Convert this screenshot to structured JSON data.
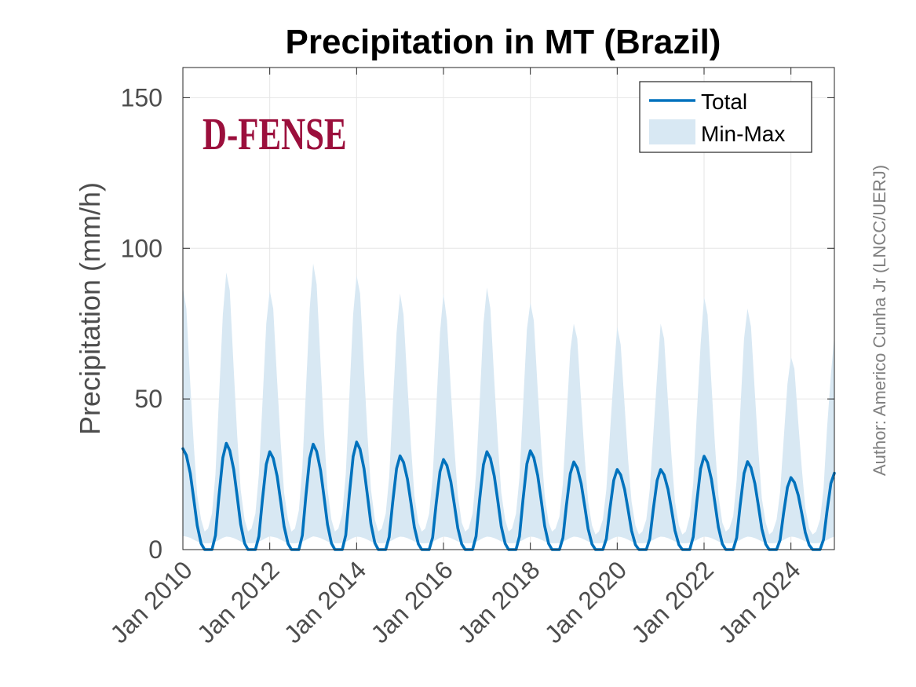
{
  "chart_data": {
    "type": "area",
    "title": "Precipitation in MT (Brazil)",
    "xlabel": "",
    "ylabel": "Precipitation (mm/h)",
    "author": "Author: Americo Cunha Jr (LNCC/UERJ)",
    "logo_text": "D-FENSE",
    "xlim": [
      2010.0,
      2025.0
    ],
    "ylim": [
      0,
      160
    ],
    "yticks": [
      0,
      50,
      100,
      150
    ],
    "xtick_labels": [
      "Jan 2010",
      "Jan 2012",
      "Jan 2014",
      "Jan 2016",
      "Jan 2018",
      "Jan 2020",
      "Jan 2022",
      "Jan 2024"
    ],
    "xtick_years": [
      2010,
      2012,
      2014,
      2016,
      2018,
      2020,
      2022,
      2024
    ],
    "grid": true,
    "legend_position": "top-right",
    "colors": {
      "line": "#0072BD",
      "band": "#D8E8F3",
      "logo": "#9B0F3C"
    },
    "series": [
      {
        "name": "Total",
        "x": [
          2010.0,
          2010.08,
          2010.17,
          2010.25,
          2010.33,
          2010.42,
          2010.5,
          2010.58,
          2010.67,
          2010.75,
          2010.83,
          2010.92,
          2011.0,
          2011.08,
          2011.17,
          2011.25,
          2011.33,
          2011.42,
          2011.5,
          2011.58,
          2011.67,
          2011.75,
          2011.83,
          2011.92,
          2012.0,
          2012.08,
          2012.17,
          2012.25,
          2012.33,
          2012.42,
          2012.5,
          2012.58,
          2012.67,
          2012.75,
          2012.83,
          2012.92,
          2013.0,
          2013.08,
          2013.17,
          2013.25,
          2013.33,
          2013.42,
          2013.5,
          2013.58,
          2013.67,
          2013.75,
          2013.83,
          2013.92,
          2014.0,
          2014.08,
          2014.17,
          2014.25,
          2014.33,
          2014.42,
          2014.5,
          2014.58,
          2014.67,
          2014.75,
          2014.83,
          2014.92,
          2015.0,
          2015.08,
          2015.17,
          2015.25,
          2015.33,
          2015.42,
          2015.5,
          2015.58,
          2015.67,
          2015.75,
          2015.83,
          2015.92,
          2016.0,
          2016.08,
          2016.17,
          2016.25,
          2016.33,
          2016.42,
          2016.5,
          2016.58,
          2016.67,
          2016.75,
          2016.83,
          2016.92,
          2017.0,
          2017.08,
          2017.17,
          2017.25,
          2017.33,
          2017.42,
          2017.5,
          2017.58,
          2017.67,
          2017.75,
          2017.83,
          2017.92,
          2018.0,
          2018.08,
          2018.17,
          2018.25,
          2018.33,
          2018.42,
          2018.5,
          2018.58,
          2018.67,
          2018.75,
          2018.83,
          2018.92,
          2019.0,
          2019.08,
          2019.17,
          2019.25,
          2019.33,
          2019.42,
          2019.5,
          2019.58,
          2019.67,
          2019.75,
          2019.83,
          2019.92,
          2020.0,
          2020.08,
          2020.17,
          2020.25,
          2020.33,
          2020.42,
          2020.5,
          2020.58,
          2020.67,
          2020.75,
          2020.83,
          2020.92,
          2021.0,
          2021.08,
          2021.17,
          2021.25,
          2021.33,
          2021.42,
          2021.5,
          2021.58,
          2021.67,
          2021.75,
          2021.83,
          2021.92,
          2022.0,
          2022.08,
          2022.17,
          2022.25,
          2022.33,
          2022.42,
          2022.5,
          2022.58,
          2022.67,
          2022.75,
          2022.83,
          2022.92,
          2023.0,
          2023.08,
          2023.17,
          2023.25,
          2023.33,
          2023.42,
          2023.5,
          2023.58,
          2023.67,
          2023.75,
          2023.83,
          2023.92,
          2024.0,
          2024.08,
          2024.17,
          2024.25,
          2024.33,
          2024.42,
          2024.5,
          2024.58,
          2024.67,
          2024.75,
          2024.83,
          2024.92,
          2025.0
        ],
        "values": [
          33.5,
          31.3,
          25.3,
          16.8,
          8.0,
          2.0,
          0.0,
          0.0,
          0.0,
          4.7,
          17.7,
          30.5,
          35.3,
          32.9,
          26.6,
          17.7,
          8.4,
          2.1,
          0.0,
          0.0,
          0.0,
          4.4,
          16.4,
          28.3,
          32.5,
          30.3,
          24.4,
          16.2,
          7.7,
          2.0,
          0.0,
          0.0,
          0.0,
          4.7,
          17.5,
          30.3,
          35.0,
          32.6,
          26.3,
          17.5,
          8.3,
          2.1,
          0.0,
          0.0,
          0.0,
          4.8,
          17.9,
          30.9,
          35.7,
          33.3,
          26.9,
          17.9,
          8.5,
          2.2,
          0.0,
          0.0,
          0.0,
          4.2,
          15.6,
          26.9,
          31.1,
          29.0,
          23.4,
          15.6,
          7.4,
          1.9,
          0.0,
          0.0,
          0.0,
          4.0,
          15.0,
          25.9,
          29.9,
          27.9,
          22.5,
          15.0,
          7.1,
          1.8,
          0.0,
          0.0,
          0.0,
          4.4,
          16.3,
          28.2,
          32.5,
          30.3,
          24.4,
          16.3,
          7.7,
          2.0,
          0.0,
          0.0,
          0.0,
          4.4,
          16.4,
          28.4,
          32.8,
          30.5,
          24.6,
          16.4,
          7.8,
          2.0,
          0.0,
          0.0,
          0.0,
          3.9,
          14.6,
          25.2,
          29.1,
          27.1,
          21.9,
          14.6,
          6.9,
          1.8,
          0.0,
          0.0,
          0.0,
          3.6,
          13.3,
          23.0,
          26.6,
          24.8,
          20.0,
          13.3,
          6.3,
          1.6,
          0.0,
          0.0,
          0.0,
          3.6,
          13.3,
          23.0,
          26.6,
          24.8,
          20.0,
          13.3,
          6.3,
          1.6,
          0.0,
          0.0,
          0.0,
          4.2,
          15.5,
          26.8,
          31.0,
          28.9,
          23.3,
          15.5,
          7.4,
          1.9,
          0.0,
          0.0,
          0.0,
          3.9,
          14.6,
          25.3,
          29.2,
          27.2,
          21.9,
          14.6,
          6.9,
          1.8,
          0.0,
          0.0,
          0.0,
          3.2,
          12.0,
          20.7,
          23.9,
          22.3,
          18.0,
          12.0,
          5.7,
          1.5,
          0.0,
          0.0,
          0.0,
          3.3,
          12.7,
          22.0,
          25.4
        ]
      },
      {
        "name": "Min-Max",
        "x": [
          2010.0,
          2010.08,
          2010.17,
          2010.25,
          2010.33,
          2010.42,
          2010.5,
          2010.58,
          2010.67,
          2010.75,
          2010.83,
          2010.92,
          2011.0,
          2011.08,
          2011.17,
          2011.25,
          2011.33,
          2011.42,
          2011.5,
          2011.58,
          2011.67,
          2011.75,
          2011.83,
          2011.92,
          2012.0,
          2012.08,
          2012.17,
          2012.25,
          2012.33,
          2012.42,
          2012.5,
          2012.58,
          2012.67,
          2012.75,
          2012.83,
          2012.92,
          2013.0,
          2013.08,
          2013.17,
          2013.25,
          2013.33,
          2013.42,
          2013.5,
          2013.58,
          2013.67,
          2013.75,
          2013.83,
          2013.92,
          2014.0,
          2014.08,
          2014.17,
          2014.25,
          2014.33,
          2014.42,
          2014.5,
          2014.58,
          2014.67,
          2014.75,
          2014.83,
          2014.92,
          2015.0,
          2015.08,
          2015.17,
          2015.25,
          2015.33,
          2015.42,
          2015.5,
          2015.58,
          2015.67,
          2015.75,
          2015.83,
          2015.92,
          2016.0,
          2016.08,
          2016.17,
          2016.25,
          2016.33,
          2016.42,
          2016.5,
          2016.58,
          2016.67,
          2016.75,
          2016.83,
          2016.92,
          2017.0,
          2017.08,
          2017.17,
          2017.25,
          2017.33,
          2017.42,
          2017.5,
          2017.58,
          2017.67,
          2017.75,
          2017.83,
          2017.92,
          2018.0,
          2018.08,
          2018.17,
          2018.25,
          2018.33,
          2018.42,
          2018.5,
          2018.58,
          2018.67,
          2018.75,
          2018.83,
          2018.92,
          2019.0,
          2019.08,
          2019.17,
          2019.25,
          2019.33,
          2019.42,
          2019.5,
          2019.58,
          2019.67,
          2019.75,
          2019.83,
          2019.92,
          2020.0,
          2020.08,
          2020.17,
          2020.25,
          2020.33,
          2020.42,
          2020.5,
          2020.58,
          2020.67,
          2020.75,
          2020.83,
          2020.92,
          2021.0,
          2021.08,
          2021.17,
          2021.25,
          2021.33,
          2021.42,
          2021.5,
          2021.58,
          2021.67,
          2021.75,
          2021.83,
          2021.92,
          2022.0,
          2022.08,
          2022.17,
          2022.25,
          2022.33,
          2022.42,
          2022.5,
          2022.58,
          2022.67,
          2022.75,
          2022.83,
          2022.92,
          2023.0,
          2023.08,
          2023.17,
          2023.25,
          2023.33,
          2023.42,
          2023.5,
          2023.58,
          2023.67,
          2023.75,
          2023.83,
          2023.92,
          2024.0,
          2024.08,
          2024.17,
          2024.25,
          2024.33,
          2024.42,
          2024.5,
          2024.58,
          2024.67,
          2024.75,
          2024.83,
          2024.92,
          2025.0
        ],
        "min": [
          4.5,
          4.3,
          3.9,
          3.3,
          2.7,
          2.3,
          2.1,
          2.1,
          2.2,
          2.6,
          3.2,
          3.9,
          4.3,
          4.2,
          3.8,
          3.3,
          2.7,
          2.3,
          2.1,
          2.1,
          2.2,
          2.6,
          3.2,
          3.9,
          4.4,
          4.2,
          3.9,
          3.3,
          2.7,
          2.3,
          2.1,
          2.1,
          2.2,
          2.6,
          3.2,
          3.9,
          4.4,
          4.2,
          3.8,
          3.3,
          2.7,
          2.3,
          2.1,
          2.1,
          2.2,
          2.6,
          3.2,
          3.9,
          4.3,
          4.2,
          3.8,
          3.3,
          2.7,
          2.3,
          2.1,
          2.1,
          2.2,
          2.6,
          3.2,
          3.9,
          4.3,
          4.2,
          3.8,
          3.3,
          2.7,
          2.3,
          2.1,
          2.1,
          2.2,
          2.6,
          3.2,
          3.9,
          4.3,
          4.2,
          3.8,
          3.3,
          2.7,
          2.3,
          2.1,
          2.1,
          2.2,
          2.6,
          3.2,
          3.9,
          4.3,
          4.2,
          3.8,
          3.3,
          2.7,
          2.3,
          2.1,
          2.1,
          2.2,
          2.6,
          3.2,
          3.9,
          4.3,
          4.2,
          3.8,
          3.3,
          2.7,
          2.3,
          2.1,
          2.1,
          2.2,
          2.6,
          3.2,
          3.9,
          4.3,
          4.2,
          3.8,
          3.3,
          2.7,
          2.3,
          2.1,
          2.1,
          2.2,
          2.6,
          3.2,
          3.9,
          4.3,
          4.2,
          3.8,
          3.3,
          2.7,
          2.3,
          2.1,
          2.1,
          2.2,
          2.6,
          3.2,
          3.9,
          4.3,
          4.2,
          3.8,
          3.3,
          2.7,
          2.3,
          2.1,
          2.1,
          2.2,
          2.6,
          3.2,
          3.9,
          4.3,
          4.2,
          3.8,
          3.3,
          2.7,
          2.3,
          2.1,
          2.1,
          2.2,
          2.6,
          3.2,
          3.9,
          4.3,
          4.2,
          3.8,
          3.3,
          2.7,
          2.3,
          2.1,
          2.1,
          2.2,
          2.6,
          3.2,
          3.9,
          4.3,
          4.2,
          3.8,
          3.3,
          2.7,
          2.3,
          2.1,
          2.1,
          2.2,
          2.6,
          3.2,
          3.9,
          4.3
        ],
        "max": [
          87.0,
          80.0,
          55.0,
          35.0,
          18.0,
          10.0,
          6.0,
          7.0,
          12.0,
          25.0,
          50.0,
          78.0,
          92.0,
          86.0,
          60.0,
          38.0,
          20.0,
          10.0,
          6.0,
          7.0,
          12.0,
          25.0,
          48.0,
          75.0,
          86.0,
          80.0,
          56.0,
          36.0,
          19.0,
          10.0,
          6.0,
          7.0,
          13.0,
          27.0,
          52.0,
          80.0,
          95.0,
          88.0,
          62.0,
          39.0,
          20.0,
          10.0,
          6.0,
          7.0,
          12.0,
          25.0,
          50.0,
          78.0,
          91.0,
          85.0,
          60.0,
          38.0,
          20.0,
          10.0,
          6.0,
          7.0,
          12.0,
          24.0,
          47.0,
          72.0,
          85.0,
          78.0,
          55.0,
          35.0,
          18.0,
          9.0,
          6.0,
          7.0,
          12.0,
          24.0,
          46.0,
          72.0,
          85.0,
          76.0,
          53.0,
          34.0,
          18.0,
          9.0,
          6.0,
          7.0,
          12.0,
          25.0,
          48.0,
          75.0,
          87.0,
          80.0,
          56.0,
          36.0,
          19.0,
          10.0,
          6.0,
          7.0,
          12.0,
          24.0,
          47.0,
          73.0,
          82.0,
          76.0,
          53.0,
          34.0,
          18.0,
          9.0,
          6.0,
          7.0,
          11.0,
          22.0,
          43.0,
          66.0,
          75.0,
          70.0,
          49.0,
          31.0,
          16.0,
          8.0,
          5.0,
          6.0,
          10.0,
          20.0,
          38.0,
          58.0,
          74.0,
          68.0,
          48.0,
          30.0,
          16.0,
          8.0,
          5.0,
          6.0,
          10.0,
          20.0,
          38.0,
          58.0,
          75.0,
          70.0,
          49.0,
          31.0,
          16.0,
          8.0,
          5.0,
          6.0,
          11.0,
          22.0,
          44.0,
          68.0,
          84.0,
          78.0,
          55.0,
          35.0,
          18.0,
          9.0,
          6.0,
          7.0,
          11.0,
          23.0,
          45.0,
          70.0,
          80.0,
          74.0,
          52.0,
          33.0,
          17.0,
          9.0,
          5.0,
          6.0,
          10.0,
          19.0,
          36.0,
          55.0,
          64.0,
          60.0,
          42.0,
          27.0,
          14.0,
          7.0,
          5.0,
          6.0,
          10.0,
          20.0,
          40.0,
          58.0,
          71.0
        ]
      }
    ],
    "legend": [
      {
        "label": "Total",
        "kind": "line"
      },
      {
        "label": "Min-Max",
        "kind": "patch"
      }
    ]
  }
}
